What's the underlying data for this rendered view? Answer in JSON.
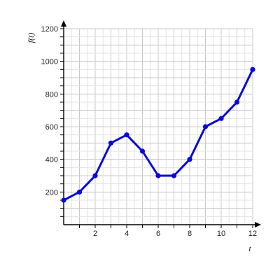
{
  "chart_data": {
    "type": "line",
    "xlabel": "t",
    "ylabel": "f(t)",
    "xlim": [
      0,
      12
    ],
    "ylim": [
      0,
      1200
    ],
    "x_ticks_labeled": [
      "2",
      "4",
      "6",
      "8",
      "10",
      "12"
    ],
    "y_ticks_labeled": [
      "200",
      "400",
      "600",
      "800",
      "1000",
      "1200"
    ],
    "grid": true,
    "x_minor_step": 0.5,
    "y_minor_step": 50,
    "series": [
      {
        "color": "#0a0ad6",
        "x": [
          0,
          1,
          2,
          3,
          4,
          5,
          6,
          7,
          8,
          9,
          10,
          11,
          12
        ],
        "y": [
          150,
          200,
          300,
          500,
          550,
          450,
          300,
          300,
          400,
          600,
          650,
          750,
          950
        ]
      }
    ]
  }
}
